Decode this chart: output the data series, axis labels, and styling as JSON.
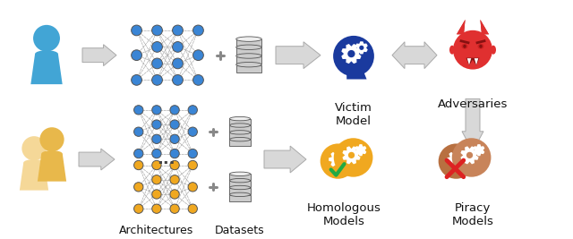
{
  "bg_color": "#ffffff",
  "labels": {
    "victim_model": "Victim\nModel",
    "adversaries": "Adversaries",
    "homologous": "Homologous\nModels",
    "piracy": "Piracy\nModels",
    "architectures": "Architectures",
    "datasets": "Datasets"
  },
  "colors": {
    "blue_person": "#42a5d5",
    "blue_dark": "#1a3a9e",
    "blue_node": "#3a85d5",
    "yellow_person_back": "#f5d898",
    "yellow_person_front": "#e8b84b",
    "yellow_node": "#f0a820",
    "red_devil": "#e03030",
    "red_devil_dark": "#bb2020",
    "brown_head": "#c8845a",
    "brown_head2": "#b07040",
    "arrow_fill": "#d8d8d8",
    "arrow_stroke": "#aaaaaa",
    "black": "#222222",
    "white": "#ffffff",
    "green_check": "#22aa44",
    "red_x": "#dd2222",
    "db_gray": "#aaaaaa",
    "db_light": "#dddddd",
    "plus_color": "#888888"
  },
  "layout": {
    "fig_width": 6.4,
    "fig_height": 2.67,
    "dpi": 100
  }
}
